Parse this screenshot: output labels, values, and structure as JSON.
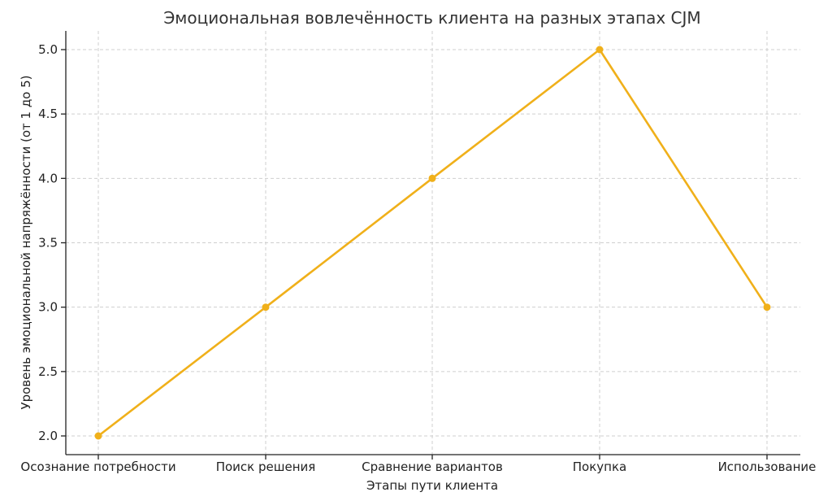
{
  "chart_data": {
    "type": "line",
    "title": "Эмоциональная вовлечённость клиента на разных этапах CJM",
    "xlabel": "Этапы пути клиента",
    "ylabel": "Уровень эмоциональной напряжённости (от 1 до 5)",
    "categories": [
      "Осознание потребности",
      "Поиск решения",
      "Сравнение вариантов",
      "Покупка",
      "Использование"
    ],
    "series": [
      {
        "values": [
          2,
          3,
          4,
          5,
          3
        ],
        "color": "#f0b01a"
      }
    ],
    "ylim": [
      2.0,
      5.0
    ],
    "yticks": [
      "2.0",
      "2.5",
      "3.0",
      "3.5",
      "4.0",
      "4.5",
      "5.0"
    ],
    "grid": true,
    "marker": "circle"
  }
}
